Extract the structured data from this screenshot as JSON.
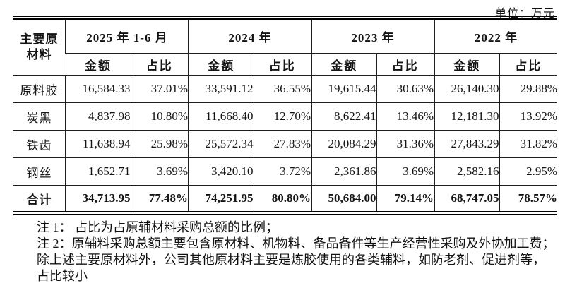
{
  "unit_label": "单位：万元",
  "table": {
    "corner_header": "主要原材料",
    "periods": [
      "2025 年 1-6 月",
      "2024 年",
      "2023 年",
      "2022 年"
    ],
    "sub_headers": {
      "amount": "金额",
      "ratio": "占比"
    },
    "rows": [
      {
        "material": "原料胶",
        "cells": [
          "16,584.33",
          "37.01%",
          "33,591.12",
          "36.55%",
          "19,615.44",
          "30.63%",
          "26,140.30",
          "29.88%"
        ]
      },
      {
        "material": "炭黑",
        "cells": [
          "4,837.98",
          "10.80%",
          "11,668.40",
          "12.70%",
          "8,622.41",
          "13.46%",
          "12,181.30",
          "13.92%"
        ]
      },
      {
        "material": "铁齿",
        "cells": [
          "11,638.94",
          "25.98%",
          "25,572.34",
          "27.83%",
          "20,084.29",
          "31.36%",
          "27,843.29",
          "31.82%"
        ]
      },
      {
        "material": "钢丝",
        "cells": [
          "1,652.71",
          "3.69%",
          "3,420.10",
          "3.72%",
          "2,361.86",
          "3.69%",
          "2,582.16",
          "2.95%"
        ]
      }
    ],
    "total_row": {
      "material": "合计",
      "cells": [
        "34,713.95",
        "77.48%",
        "74,251.95",
        "80.80%",
        "50,684.00",
        "79.14%",
        "68,747.05",
        "78.57%"
      ]
    }
  },
  "notes": [
    "注 1： 占比为占原辅材料采购总额的比例；",
    "注 2：原辅料采购总额主要包含原材料、机物料、备品备件等生产经营性采购及外协加工费；",
    "除上述主要原材料外，公司其他原材料主要是炼胶使用的各类辅料，如防老剂、促进剂等，",
    "占比较小"
  ],
  "colors": {
    "text": "#141414",
    "border": "#1f1f1f",
    "background": "#ffffff"
  }
}
